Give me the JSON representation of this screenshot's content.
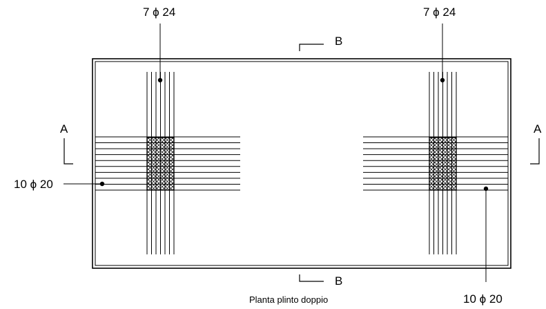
{
  "drawing": {
    "caption": "Planta plinto doppio",
    "section_a": "A",
    "section_b": "B",
    "rebar_top_left": "7 ϕ 24",
    "rebar_top_right": "7 ϕ 24",
    "rebar_left": "10 ϕ 20",
    "rebar_bottom_right": "10 ϕ 20"
  }
}
